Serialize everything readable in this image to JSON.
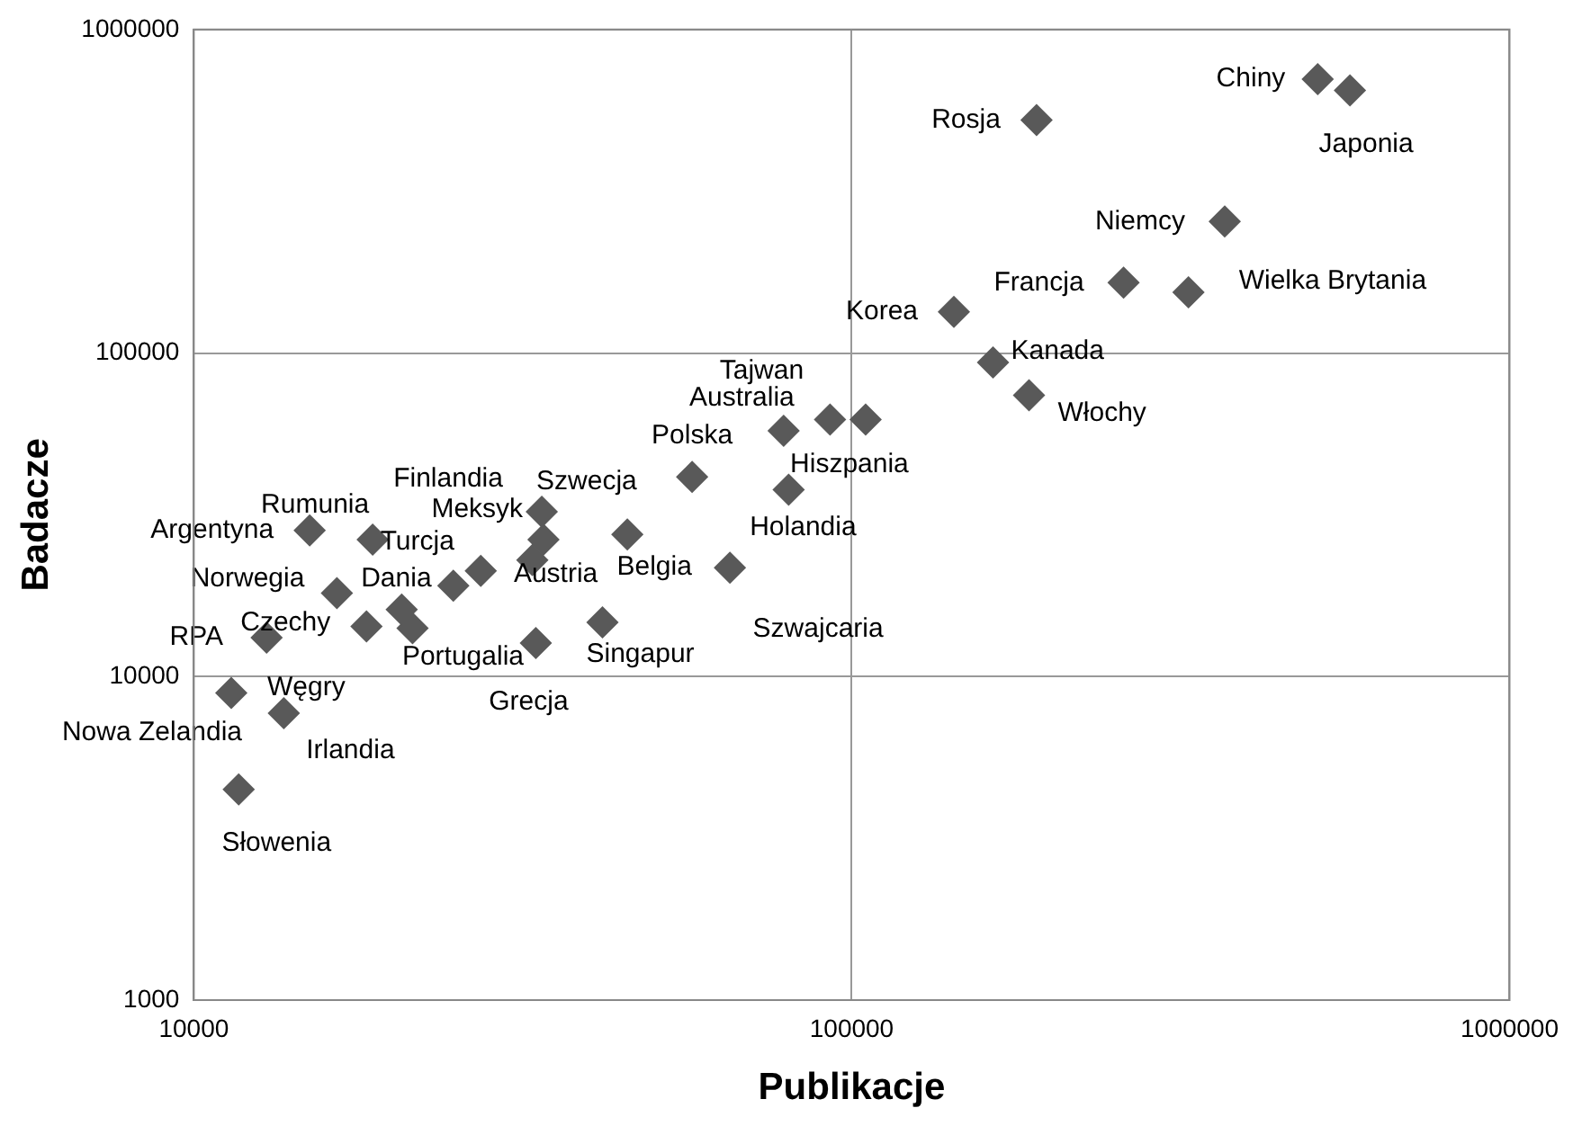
{
  "chart_data": {
    "type": "scatter",
    "xlabel": "Publikacje",
    "ylabel": "Badacze",
    "log": "xy",
    "grid": true,
    "legend": false,
    "marker": "diamond",
    "xlim": [
      10000,
      1000000
    ],
    "xticks": [
      10000,
      100000,
      1000000
    ],
    "ylim": [
      1000,
      1000000
    ],
    "yticks": [
      1000,
      10000,
      100000,
      1000000
    ],
    "series": [
      {
        "color": "#595959",
        "x": [
          511000,
          572000,
          191000,
          369000,
          259000,
          325000,
          143000,
          164000,
          186000,
          78800,
          92700,
          105000,
          80200,
          57200,
          65300,
          45600,
          34000,
          33800,
          27300,
          32700,
          41800,
          33100,
          21500,
          24800,
          20700,
          18300,
          18700,
          15000,
          16500,
          12900,
          null,
          11400,
          13700,
          11700
        ],
        "values": [
          702000,
          648000,
          525000,
          255000,
          165000,
          154000,
          134000,
          93500,
          74000,
          57500,
          62300,
          62300,
          37800,
          41400,
          21700,
          27500,
          26500,
          32300,
          21200,
          22900,
          14700,
          12700,
          14100,
          19100,
          16100,
          14300,
          26500,
          28300,
          18100,
          13200,
          null,
          8900,
          7700,
          4480
        ]
      }
    ],
    "annotations": [
      {
        "text": "Chiny",
        "x": 511000,
        "y": 702000
      },
      {
        "text": "Japonia",
        "x": 572000,
        "y": 648000
      },
      {
        "text": "Rosja",
        "x": 191000,
        "y": 525000
      },
      {
        "text": "Niemcy",
        "x": 369000,
        "y": 255000
      },
      {
        "text": "Francja",
        "x": 259000,
        "y": 165000
      },
      {
        "text": "Wielka Brytania",
        "x": 325000,
        "y": 154000
      },
      {
        "text": "Korea",
        "x": 143000,
        "y": 134000
      },
      {
        "text": "Kanada",
        "x": 164000,
        "y": 93500
      },
      {
        "text": "Włochy",
        "x": 186000,
        "y": 74000
      },
      {
        "text": "Australia",
        "x": 78800,
        "y": 57500
      },
      {
        "text": "Tajwan",
        "x": 92700,
        "y": 62300
      },
      {
        "text": "Hiszpania",
        "x": 105000,
        "y": 62300
      },
      {
        "text": "Holandia",
        "x": 80200,
        "y": 37800
      },
      {
        "text": "Polska",
        "x": 57200,
        "y": 41400
      },
      {
        "text": "Szwajcaria",
        "x": 65300,
        "y": 21700
      },
      {
        "text": "Belgia",
        "x": 45600,
        "y": 27500
      },
      {
        "text": "Szwecja",
        "x": 34000,
        "y": 26500
      },
      {
        "text": "Finlandia",
        "x": 33800,
        "y": 32300
      },
      {
        "text": "Meksyk",
        "x": 27300,
        "y": 21200
      },
      {
        "text": "Austria",
        "x": 32700,
        "y": 22900
      },
      {
        "text": "Singapur",
        "x": 41800,
        "y": 14700
      },
      {
        "text": "Grecja",
        "x": 33100,
        "y": 12700
      },
      {
        "text": "Portugalia",
        "x": 21500,
        "y": 14100
      },
      {
        "text": "Turcja",
        "x": 24800,
        "y": 19100
      },
      {
        "text": "Dania",
        "x": 20700,
        "y": 16100
      },
      {
        "text": "Czechy",
        "x": 18300,
        "y": 14300
      },
      {
        "text": "Rumunia",
        "x": 18700,
        "y": 26500
      },
      {
        "text": "Argentyna",
        "x": 15000,
        "y": 28300
      },
      {
        "text": "Norwegia",
        "x": 16500,
        "y": 18100
      },
      {
        "text": "RPA",
        "x": 12900,
        "y": 13200
      },
      {
        "text": "Węgry",
        "x": 11400,
        "y": 8900
      },
      {
        "text": "Nowa Zelandia",
        "x": 11400,
        "y": 8900
      },
      {
        "text": "Irlandia",
        "x": 13700,
        "y": 7700
      },
      {
        "text": "Słowenia",
        "x": 11700,
        "y": 4480
      }
    ]
  }
}
